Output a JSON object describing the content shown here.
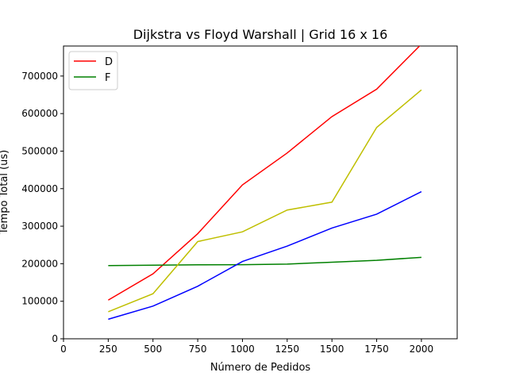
{
  "chart_data": {
    "type": "line",
    "title": "Dijkstra vs Floyd Warshall | Grid 16 x 16",
    "xlabel": "Número de Pedidos",
    "ylabel": "Tempo Total (us)",
    "xlim": [
      0,
      2200
    ],
    "ylim": [
      0,
      780000
    ],
    "xticks": [
      0,
      250,
      500,
      750,
      1000,
      1250,
      1500,
      1750,
      2000
    ],
    "yticks": [
      0,
      100000,
      200000,
      300000,
      400000,
      500000,
      600000,
      700000
    ],
    "x": [
      250,
      500,
      750,
      1000,
      1250,
      1500,
      1750,
      2000
    ],
    "series": [
      {
        "name": "D",
        "color": "#ff0000",
        "values": [
          103000,
          173000,
          280000,
          410000,
          495000,
          592000,
          665000,
          785000
        ]
      },
      {
        "name": "F",
        "color": "#008000",
        "values": [
          195000,
          196000,
          197000,
          197500,
          199000,
          204000,
          209000,
          217000
        ]
      },
      {
        "name": "",
        "color": "#bfbf00",
        "values": [
          72000,
          120000,
          259000,
          285000,
          343000,
          364000,
          563000,
          663000
        ]
      },
      {
        "name": "",
        "color": "#0000ff",
        "values": [
          52000,
          87000,
          140000,
          206000,
          247000,
          295000,
          332000,
          392000
        ]
      }
    ],
    "legend": {
      "placement": "top-left",
      "entries": [
        "D",
        "F"
      ]
    },
    "grid": false
  }
}
